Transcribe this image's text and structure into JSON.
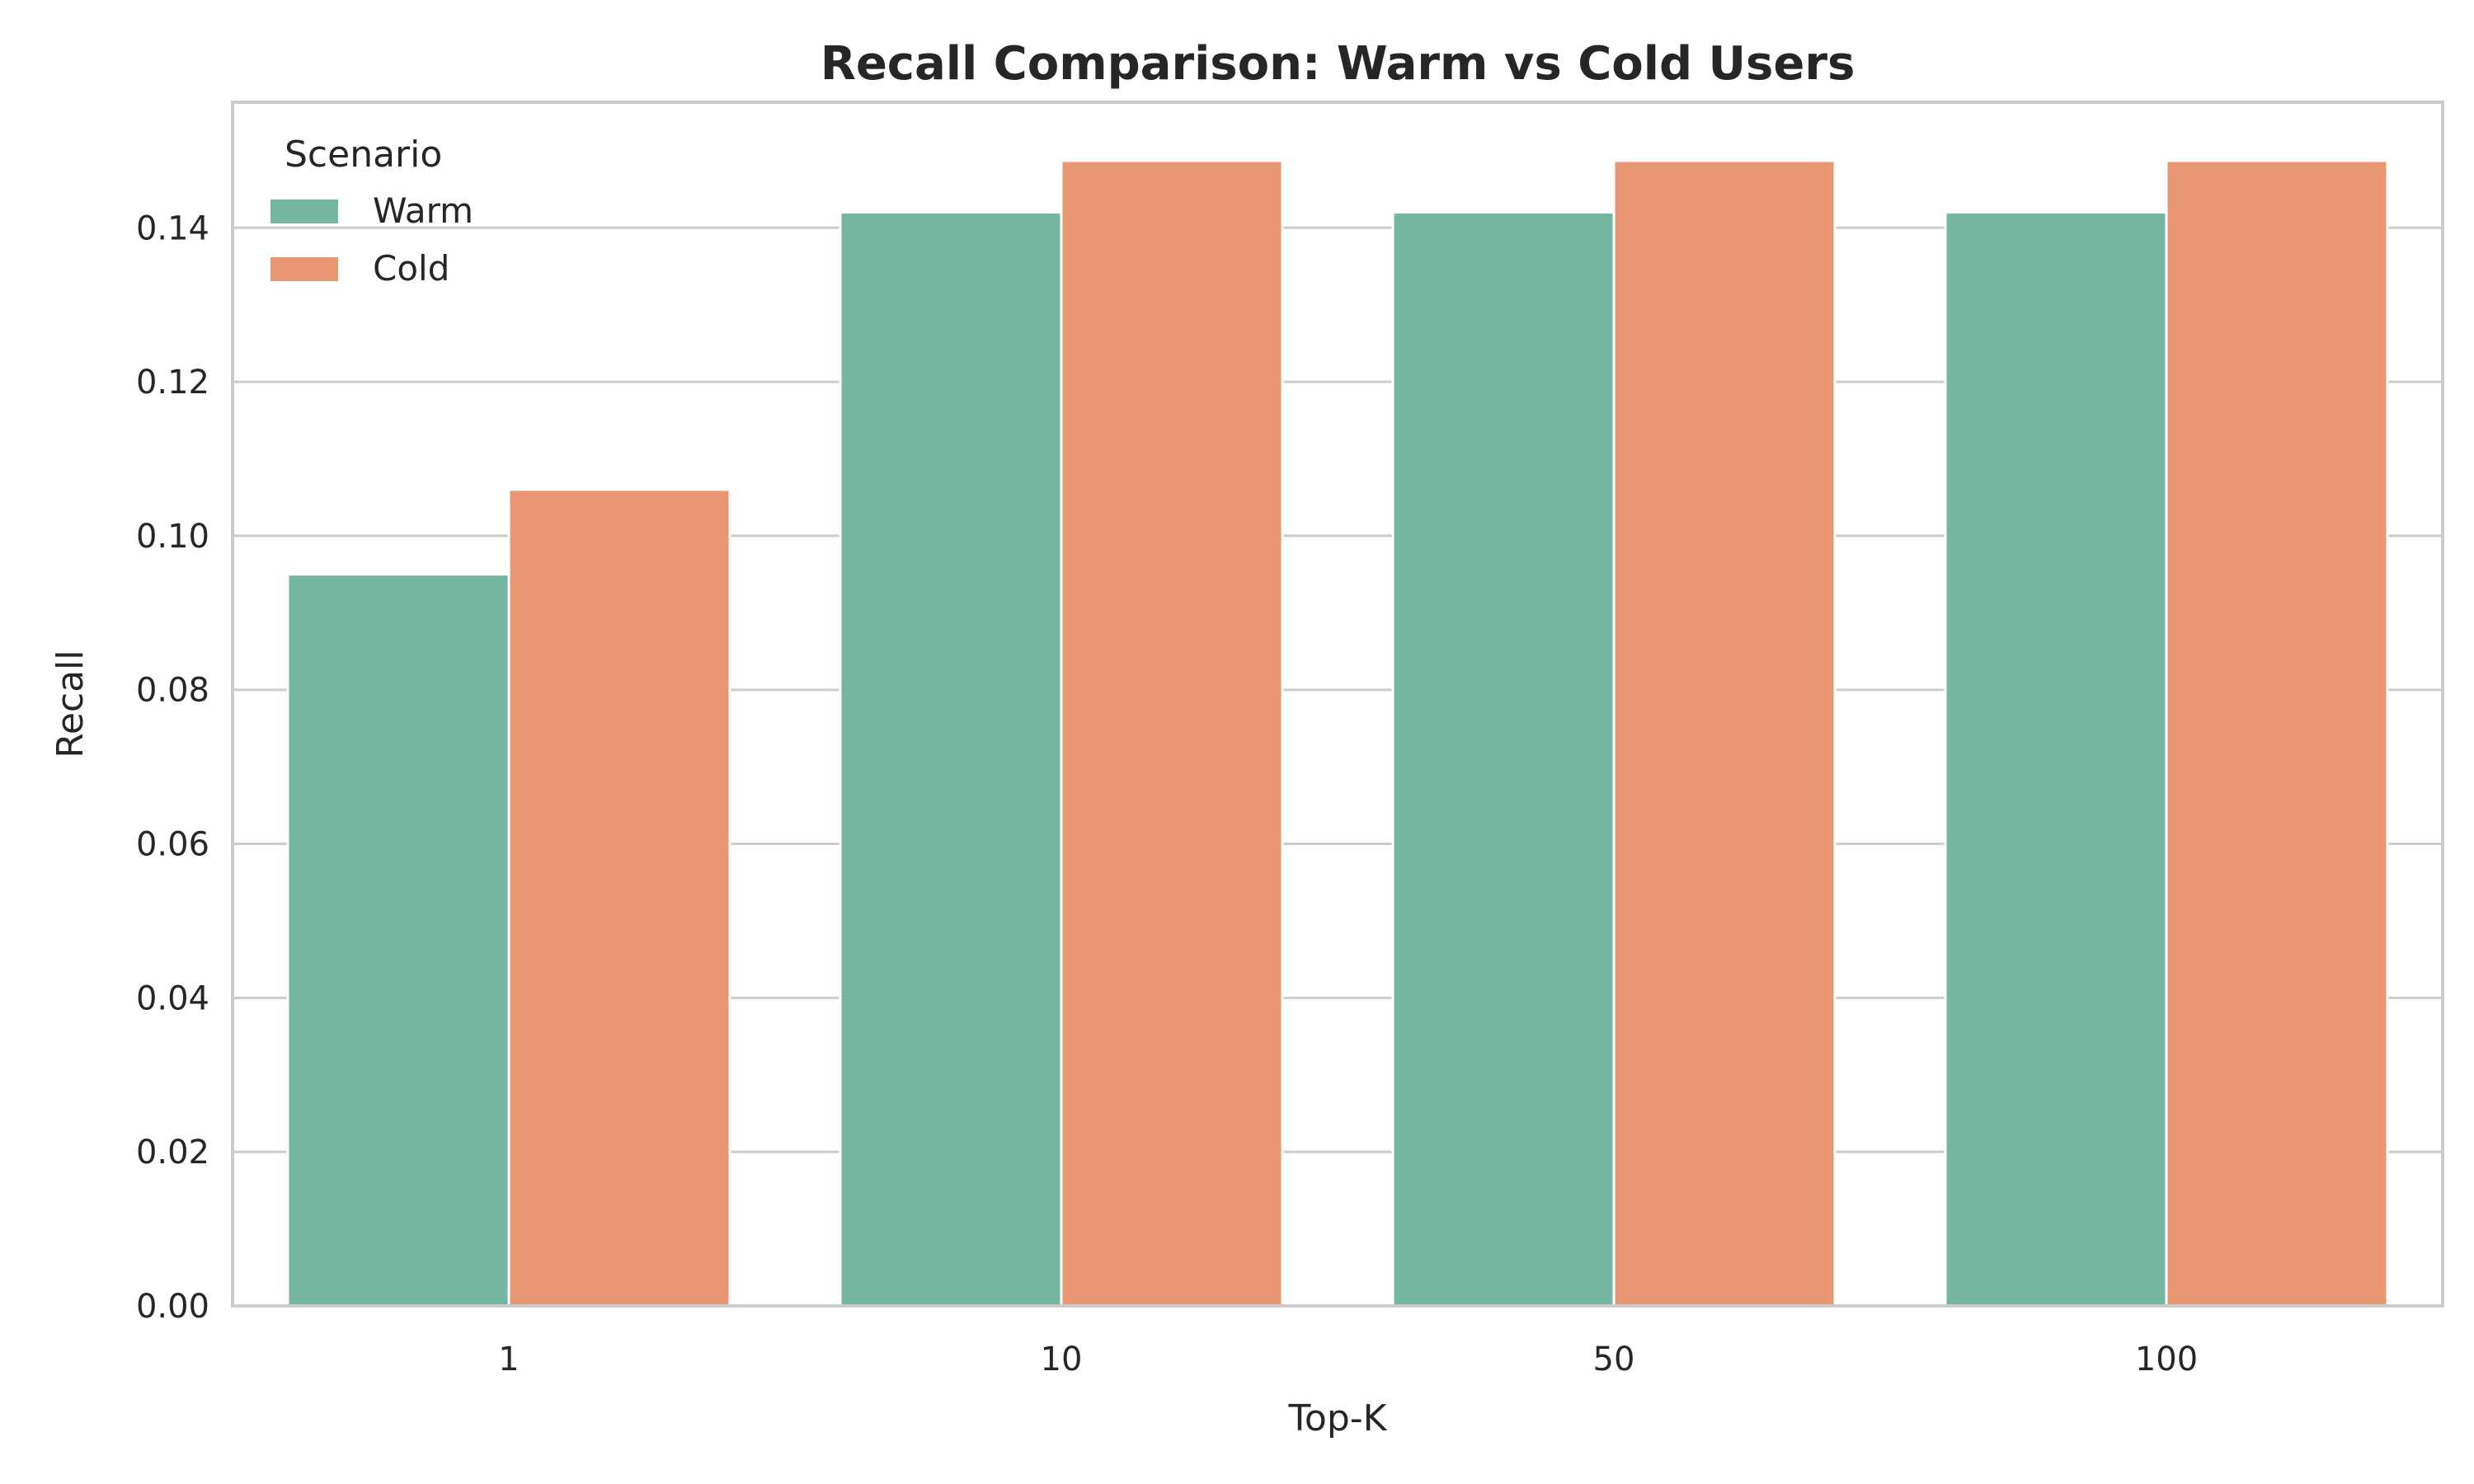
{
  "chart_data": {
    "type": "bar",
    "title": "Recall Comparison: Warm vs Cold Users",
    "xlabel": "Top-K",
    "ylabel": "Recall",
    "categories": [
      "1",
      "10",
      "50",
      "100"
    ],
    "series": [
      {
        "name": "Warm",
        "color": "#74b6a1",
        "values": [
          0.095,
          0.142,
          0.142,
          0.142
        ]
      },
      {
        "name": "Cold",
        "color": "#e99673",
        "values": [
          0.106,
          0.1487,
          0.1487,
          0.1487
        ]
      }
    ],
    "ylim": [
      0,
      0.1563
    ],
    "yticks": [
      0.0,
      0.02,
      0.04,
      0.06,
      0.08,
      0.1,
      0.12,
      0.14
    ],
    "ytick_labels": [
      "0.00",
      "0.02",
      "0.04",
      "0.06",
      "0.08",
      "0.10",
      "0.12",
      "0.14"
    ],
    "grid": "horizontal",
    "legend": {
      "title": "Scenario",
      "placement": "top-left"
    }
  }
}
